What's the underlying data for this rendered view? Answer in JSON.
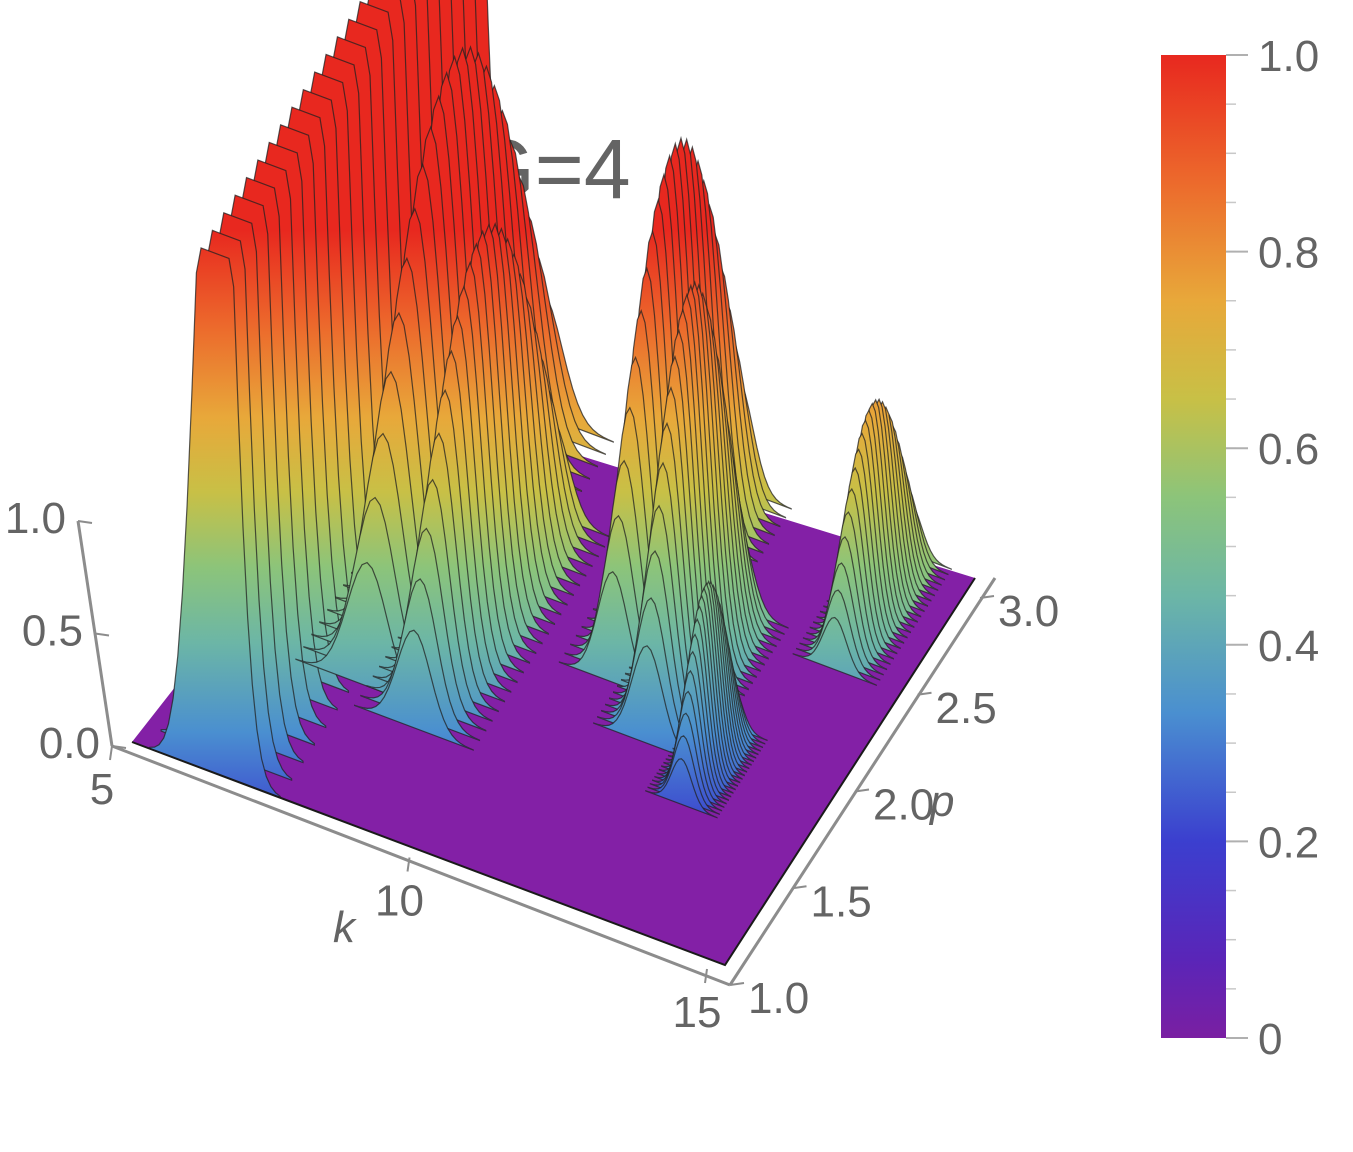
{
  "chart_data": {
    "type": "surface3d",
    "title": "G=4",
    "x_axis": {
      "label": "k",
      "range": [
        5,
        15
      ],
      "ticks": [
        "5",
        "10",
        "15"
      ]
    },
    "y_axis": {
      "label": "p",
      "range": [
        1.0,
        3.0
      ],
      "ticks": [
        "1.0",
        "1.5",
        "2.0",
        "2.5",
        "3.0"
      ]
    },
    "z_axis": {
      "label": "",
      "range": [
        0.0,
        1.0
      ],
      "ticks": [
        "0.0",
        "0.5",
        "1.0"
      ]
    },
    "colorbar": {
      "range": [
        0,
        1
      ],
      "ticks": [
        "0",
        "0.2",
        "0.4",
        "0.6",
        "0.8",
        "1.0"
      ],
      "colormap": "rainbow",
      "colors": [
        "#7a1fa2",
        "#3b3fcf",
        "#4a8fd0",
        "#8cc47a",
        "#e8a83a",
        "#e8281f"
      ]
    },
    "ridges": [
      {
        "k_center": 6.4,
        "k_width": 0.55,
        "p_start": 1.0,
        "p_end": 3.0,
        "peak": 1.0,
        "saturated": true
      },
      {
        "k_center": 7.7,
        "k_width": 0.6,
        "p_start": 1.6,
        "p_end": 3.0,
        "peak": 0.95
      },
      {
        "k_center": 8.7,
        "k_width": 0.5,
        "p_start": 1.5,
        "p_end": 2.6,
        "peak": 0.75
      },
      {
        "k_center": 11.0,
        "k_width": 0.45,
        "p_start": 2.0,
        "p_end": 3.0,
        "peak": 0.85
      },
      {
        "k_center": 12.0,
        "k_width": 0.45,
        "p_start": 1.8,
        "p_end": 2.5,
        "peak": 0.75
      },
      {
        "k_center": 13.9,
        "k_width": 0.35,
        "p_start": 2.4,
        "p_end": 3.0,
        "peak": 0.4
      },
      {
        "k_center": 13.0,
        "k_width": 0.3,
        "p_start": 1.6,
        "p_end": 2.0,
        "peak": 0.35
      }
    ]
  }
}
